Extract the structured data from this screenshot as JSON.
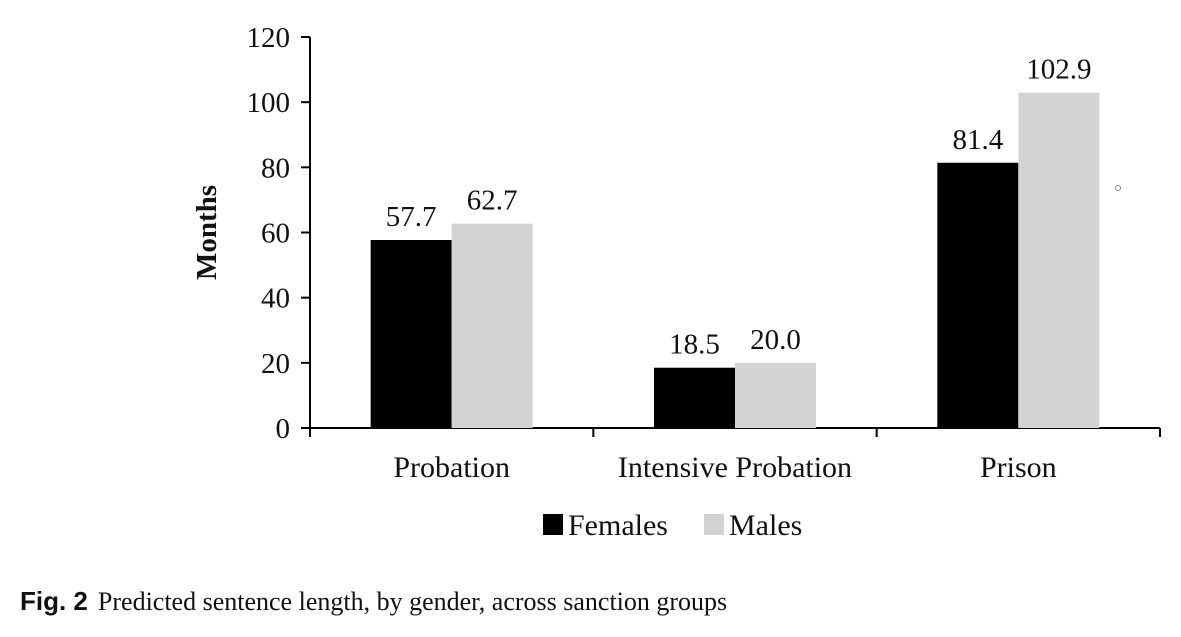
{
  "caption": {
    "label": "Fig. 2",
    "text": "Predicted sentence length, by gender, across sanction groups"
  },
  "chart_data": {
    "type": "bar",
    "title": "",
    "xlabel": "",
    "ylabel": "Months",
    "ylim": [
      0,
      120
    ],
    "yticks": [
      0,
      20,
      40,
      60,
      80,
      100,
      120
    ],
    "categories": [
      "Probation",
      "Intensive Probation",
      "Prison"
    ],
    "series": [
      {
        "name": "Females",
        "values": [
          57.7,
          18.5,
          81.4
        ],
        "labels": [
          "57.7",
          "18.5",
          "81.4"
        ],
        "color": "#000000"
      },
      {
        "name": "Males",
        "values": [
          62.7,
          20.0,
          102.9
        ],
        "labels": [
          "62.7",
          "20.0",
          "102.9"
        ],
        "color": "#d3d3d3"
      }
    ],
    "legend_position": "bottom",
    "grid": false
  }
}
